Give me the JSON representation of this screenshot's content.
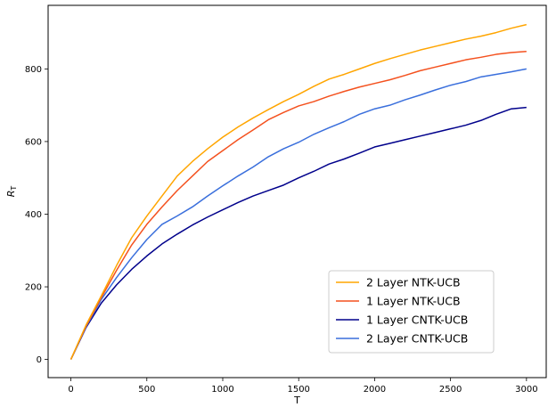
{
  "chart_data": {
    "type": "line",
    "title": "",
    "xlabel": "T",
    "ylabel_base": "R",
    "ylabel_sub": "T",
    "xlim": [
      -150,
      3130
    ],
    "ylim": [
      -50,
      975
    ],
    "xticks": [
      0,
      500,
      1000,
      1500,
      2000,
      2500,
      3000
    ],
    "yticks": [
      0,
      200,
      400,
      600,
      800
    ],
    "grid": false,
    "legend_position": "lower-right",
    "series": [
      {
        "name": "2 Layer NTK-UCB",
        "color": "#FFA500",
        "x": [
          0,
          100,
          200,
          300,
          400,
          500,
          600,
          700,
          800,
          900,
          1000,
          1100,
          1200,
          1300,
          1400,
          1500,
          1600,
          1700,
          1800,
          1900,
          2000,
          2100,
          2200,
          2300,
          2400,
          2500,
          2600,
          2700,
          2800,
          2900,
          3000
        ],
        "y": [
          0,
          95,
          175,
          258,
          335,
          395,
          450,
          505,
          545,
          580,
          612,
          640,
          665,
          688,
          710,
          730,
          752,
          772,
          785,
          800,
          815,
          828,
          840,
          852,
          862,
          872,
          882,
          890,
          900,
          912,
          922
        ]
      },
      {
        "name": "1 Layer NTK-UCB",
        "color": "#F4511E",
        "x": [
          0,
          100,
          200,
          300,
          400,
          500,
          600,
          700,
          800,
          900,
          1000,
          1100,
          1200,
          1300,
          1400,
          1500,
          1600,
          1700,
          1800,
          1900,
          2000,
          2100,
          2200,
          2300,
          2400,
          2500,
          2600,
          2700,
          2800,
          2900,
          3000
        ],
        "y": [
          0,
          92,
          170,
          245,
          315,
          372,
          420,
          465,
          505,
          545,
          575,
          605,
          632,
          660,
          680,
          698,
          710,
          725,
          738,
          750,
          760,
          770,
          782,
          795,
          805,
          815,
          825,
          832,
          840,
          845,
          848
        ]
      },
      {
        "name": "1 Layer CNTK-UCB",
        "color": "#00008B",
        "x": [
          0,
          100,
          200,
          300,
          400,
          500,
          600,
          700,
          800,
          900,
          1000,
          1100,
          1200,
          1300,
          1400,
          1500,
          1600,
          1700,
          1800,
          1900,
          2000,
          2100,
          2200,
          2300,
          2400,
          2500,
          2600,
          2700,
          2800,
          2900,
          3000
        ],
        "y": [
          0,
          88,
          155,
          205,
          248,
          285,
          318,
          345,
          370,
          392,
          412,
          432,
          450,
          465,
          480,
          500,
          518,
          538,
          552,
          568,
          585,
          595,
          605,
          615,
          625,
          635,
          645,
          658,
          675,
          690,
          694
        ]
      },
      {
        "name": "2 Layer CNTK-UCB",
        "color": "#3A6FDC",
        "x": [
          0,
          100,
          200,
          300,
          400,
          500,
          600,
          700,
          800,
          900,
          1000,
          1100,
          1200,
          1300,
          1400,
          1500,
          1600,
          1700,
          1800,
          1900,
          2000,
          2100,
          2200,
          2300,
          2400,
          2500,
          2600,
          2700,
          2800,
          2900,
          3000
        ],
        "y": [
          0,
          90,
          165,
          225,
          280,
          330,
          372,
          395,
          420,
          450,
          478,
          505,
          530,
          558,
          580,
          598,
          620,
          638,
          655,
          675,
          690,
          700,
          715,
          728,
          742,
          755,
          765,
          778,
          785,
          792,
          800
        ]
      }
    ]
  }
}
